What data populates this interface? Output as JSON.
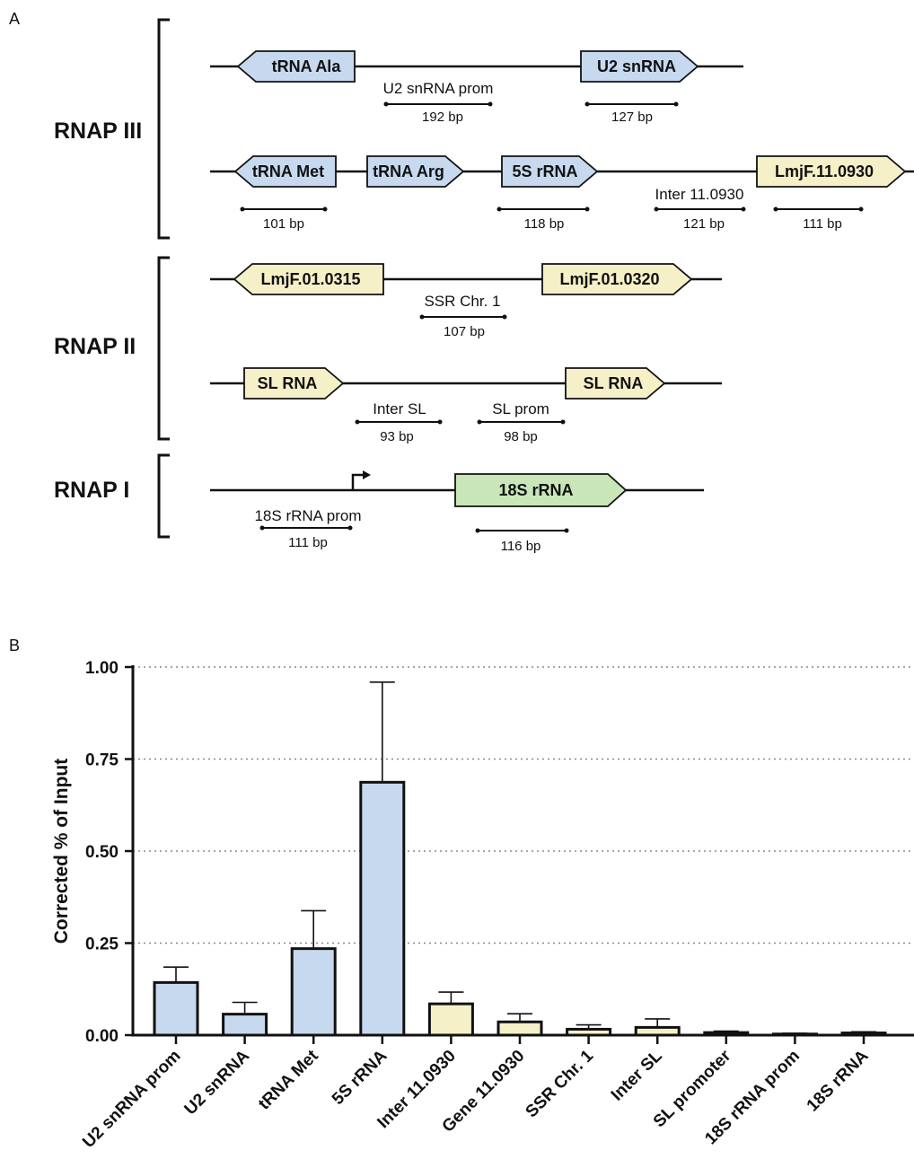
{
  "panel_a": {
    "label": "A",
    "groups": [
      {
        "name": "RNAP III"
      },
      {
        "name": "RNAP II"
      },
      {
        "name": "RNAP I"
      }
    ],
    "genes": [
      {
        "label": "tRNA Ala",
        "color": "#c7d9ef",
        "direction": "left"
      },
      {
        "label": "U2 snRNA",
        "color": "#c7d9ef",
        "direction": "right"
      },
      {
        "label": "tRNA Met",
        "color": "#c7d9ef",
        "direction": "left"
      },
      {
        "label": "tRNA Arg",
        "color": "#c7d9ef",
        "direction": "right"
      },
      {
        "label": "5S rRNA",
        "color": "#c7d9ef",
        "direction": "right"
      },
      {
        "label": "LmjF.11.0930",
        "color": "#f6f0c8",
        "direction": "right"
      },
      {
        "label": "LmjF.01.0315",
        "color": "#f6f0c8",
        "direction": "left"
      },
      {
        "label": "LmjF.01.0320",
        "color": "#f6f0c8",
        "direction": "right"
      },
      {
        "label": "SL RNA",
        "color": "#f6f0c8",
        "direction": "right"
      },
      {
        "label": "SL RNA",
        "color": "#f6f0c8",
        "direction": "right"
      },
      {
        "label": "18S rRNA",
        "color": "#c9e6b8",
        "direction": "right"
      }
    ],
    "regions": [
      {
        "name": "U2 snRNA prom",
        "size": "192 bp"
      },
      {
        "name": "",
        "size": "127 bp"
      },
      {
        "name": "",
        "size": "101 bp"
      },
      {
        "name": "",
        "size": "118 bp"
      },
      {
        "name": "Inter 11.0930",
        "size": "121 bp"
      },
      {
        "name": "",
        "size": "111 bp"
      },
      {
        "name": "SSR Chr. 1",
        "size": "107 bp"
      },
      {
        "name": "Inter SL",
        "size": "93 bp"
      },
      {
        "name": "SL prom",
        "size": "98 bp"
      },
      {
        "name": "18S rRNA prom",
        "size": "111 bp"
      },
      {
        "name": "",
        "size": "116 bp"
      }
    ]
  },
  "panel_b": {
    "label": "B"
  },
  "chart_data": {
    "type": "bar",
    "ylabel": "Corrected % of Input",
    "xlabel": "",
    "ylim": [
      0,
      1
    ],
    "yticks": [
      "0.00",
      "0.25",
      "0.50",
      "0.75",
      "1.00"
    ],
    "grid": "horizontal dotted",
    "categories": [
      "U2 snRNA prom",
      "U2 snRNA",
      "tRNA Met",
      "5S rRNA",
      "Inter 11.0930",
      "Gene 11.0930",
      "SSR Chr. 1",
      "Inter SL",
      "SL promoter",
      "18S rRNA prom",
      "18S rRNA"
    ],
    "values": [
      0.143,
      0.057,
      0.235,
      0.687,
      0.085,
      0.036,
      0.016,
      0.021,
      0.007,
      0.003,
      0.006
    ],
    "errors": [
      0.042,
      0.032,
      0.103,
      0.272,
      0.032,
      0.022,
      0.012,
      0.023,
      0.004,
      0.002,
      0.003
    ],
    "colors": [
      "#c7d9ef",
      "#c7d9ef",
      "#c7d9ef",
      "#c7d9ef",
      "#f6f0c8",
      "#f6f0c8",
      "#f6f0c8",
      "#f6f0c8",
      "#f6f0c8",
      "#f6f0c8",
      "#f6f0c8"
    ]
  }
}
